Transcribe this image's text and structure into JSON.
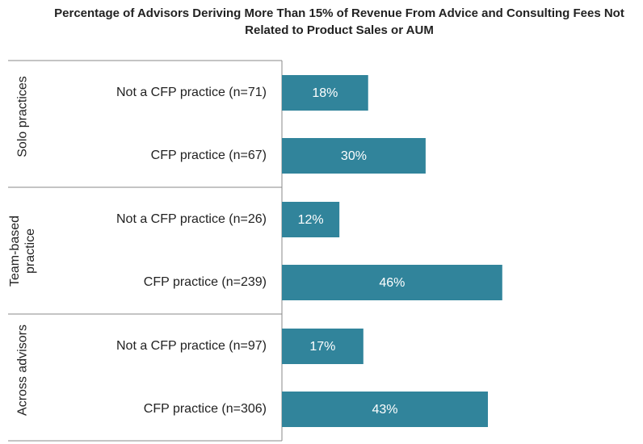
{
  "chart_data": {
    "type": "bar",
    "orientation": "horizontal",
    "title": "Percentage of Advisors Deriving More Than 15% of Revenue From Advice and Consulting Fees Not Related to Product Sales or AUM",
    "color": "#31849b",
    "groups": [
      {
        "label": "Solo practices",
        "categories": [
          "Not a CFP practice (n=71)",
          "CFP practice (n=67)"
        ],
        "values": [
          18,
          30
        ],
        "value_labels": [
          "18%",
          "30%"
        ]
      },
      {
        "label": "Team-based practice",
        "categories": [
          "Not a CFP practice (n=26)",
          "CFP practice (n=239)"
        ],
        "values": [
          12,
          46
        ],
        "value_labels": [
          "12%",
          "46%"
        ]
      },
      {
        "label": "Across advisors",
        "categories": [
          "Not a CFP practice (n=97)",
          "CFP practice (n=306)"
        ],
        "values": [
          17,
          43
        ],
        "value_labels": [
          "17%",
          "43%"
        ]
      }
    ]
  }
}
